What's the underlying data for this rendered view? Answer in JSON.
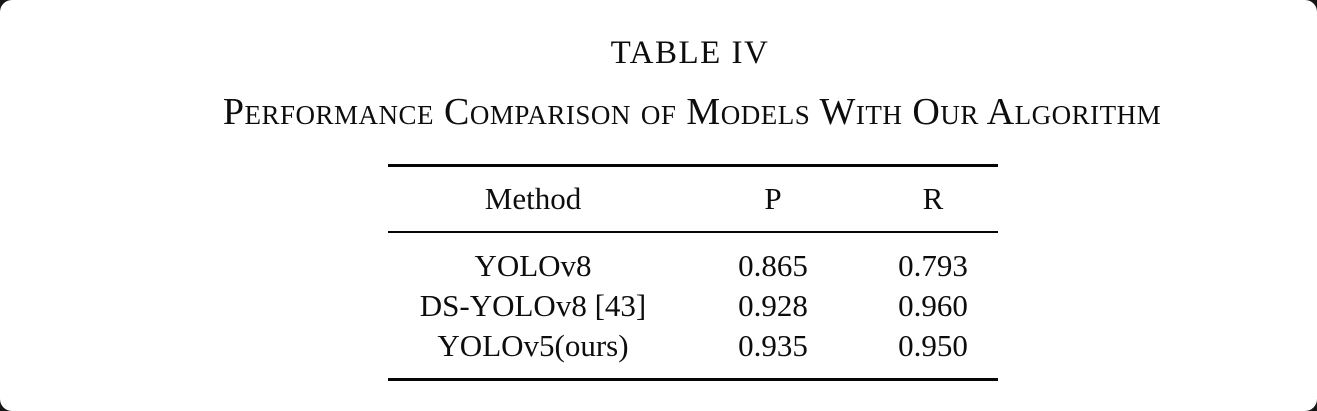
{
  "page": {
    "background_color": "#161616",
    "card_color": "#ffffff",
    "text_color": "#0d0d0d"
  },
  "caption": {
    "label": "TABLE IV",
    "title": "Performance Comparison of Models With Our Algorithm"
  },
  "table": {
    "columns": [
      "Method",
      "P",
      "R"
    ],
    "rows": [
      {
        "method": "YOLOv8",
        "p": "0.865",
        "r": "0.793"
      },
      {
        "method": "DS-YOLOv8 [43]",
        "p": "0.928",
        "r": "0.960"
      },
      {
        "method": "YOLOv5(ours)",
        "p": "0.935",
        "r": "0.950"
      }
    ]
  }
}
